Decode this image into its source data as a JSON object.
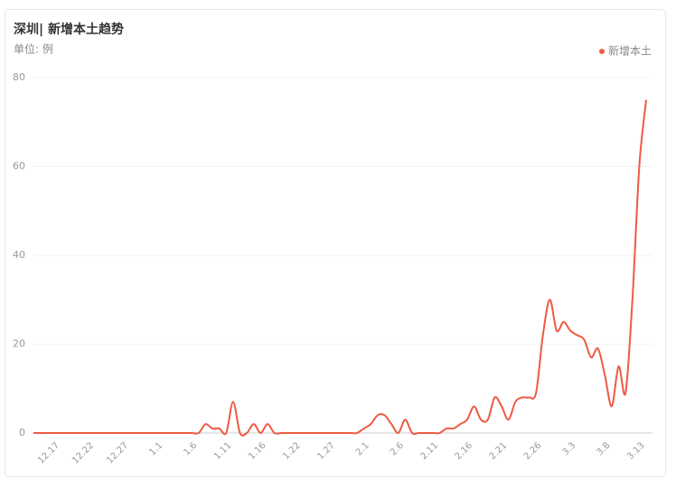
{
  "chart_data": {
    "type": "line",
    "title": "深圳| 新增本土趋势",
    "subtitle": "单位: 例",
    "categories": [
      null,
      null,
      null,
      "12.17",
      null,
      null,
      null,
      null,
      "12.22",
      null,
      null,
      null,
      null,
      "12.27",
      null,
      null,
      null,
      null,
      "1.1",
      null,
      null,
      null,
      null,
      "1.6",
      null,
      null,
      null,
      null,
      "1.11",
      null,
      null,
      null,
      null,
      "1.16",
      null,
      null,
      null,
      null,
      "1.22",
      null,
      null,
      null,
      null,
      "1.27",
      null,
      null,
      null,
      null,
      "2.1",
      null,
      null,
      null,
      null,
      "2.6",
      null,
      null,
      null,
      null,
      "2.11",
      null,
      null,
      null,
      null,
      "2.16",
      null,
      null,
      null,
      null,
      "2.21",
      null,
      null,
      null,
      null,
      "2.26",
      null,
      null,
      null,
      null,
      "3.3",
      null,
      null,
      null,
      null,
      "3.8",
      null,
      null,
      null,
      null,
      "3.13",
      null
    ],
    "series": [
      {
        "name": "新增本土",
        "color": "#ee5a44",
        "values": [
          0,
          0,
          0,
          0,
          0,
          0,
          0,
          0,
          0,
          0,
          0,
          0,
          0,
          0,
          0,
          0,
          0,
          0,
          0,
          0,
          0,
          0,
          0,
          0,
          0,
          2,
          1,
          1,
          0,
          7,
          0,
          0,
          2,
          0,
          2,
          0,
          0,
          0,
          0,
          0,
          0,
          0,
          0,
          0,
          0,
          0,
          0,
          0,
          1,
          2,
          4,
          4,
          2,
          0,
          3,
          0,
          0,
          0,
          0,
          0,
          1,
          1,
          2,
          3,
          6,
          3,
          3,
          8,
          6,
          3,
          7,
          8,
          8,
          9,
          22,
          30,
          23,
          25,
          23,
          22,
          21,
          17,
          19,
          13,
          6,
          15,
          9,
          30,
          60,
          75
        ]
      }
    ],
    "ylim": [
      0,
      80
    ],
    "yticks": [
      0,
      20,
      40,
      60,
      80
    ],
    "grid": true,
    "legend": "top-right"
  }
}
